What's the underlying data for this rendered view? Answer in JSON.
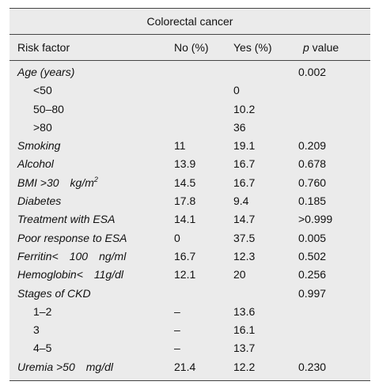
{
  "table": {
    "caption": "Colorectal cancer",
    "headers": {
      "risk": "Risk factor",
      "no": "No (%)",
      "yes": "Yes (%)",
      "p_italic": "p",
      "p_rest": " value"
    },
    "rows": [
      {
        "label": "Age (years)",
        "no": "",
        "yes": "",
        "p": "0.002"
      },
      {
        "label": "<50",
        "no": "",
        "yes": "0",
        "p": ""
      },
      {
        "label": "50–80",
        "no": "",
        "yes": "10.2",
        "p": ""
      },
      {
        "label": ">80",
        "no": "",
        "yes": "36",
        "p": ""
      },
      {
        "label": "Smoking",
        "no": "11",
        "yes": "19.1",
        "p": "0.209"
      },
      {
        "label": "Alcohol",
        "no": "13.9",
        "yes": "16.7",
        "p": "0.678"
      },
      {
        "label": "BMI >30 kg/m",
        "label_sup": "2",
        "no": "14.5",
        "yes": "16.7",
        "p": "0.760"
      },
      {
        "label": "Diabetes",
        "no": "17.8",
        "yes": "9.4",
        "p": "0.185"
      },
      {
        "label": "Treatment with ESA",
        "no": "14.1",
        "yes": "14.7",
        "p": ">0.999"
      },
      {
        "label": "Poor response to ESA",
        "no": "0",
        "yes": "37.5",
        "p": "0.005"
      },
      {
        "label": "Ferritin< 100 ng/ml",
        "no": "16.7",
        "yes": "12.3",
        "p": "0.502"
      },
      {
        "label": "Hemoglobin< 11g/dl",
        "no": "12.1",
        "yes": "20",
        "p": "0.256"
      },
      {
        "label": "Stages of CKD",
        "no": "",
        "yes": "",
        "p": "0.997"
      },
      {
        "label": "1–2",
        "no": "–",
        "yes": "13.6",
        "p": ""
      },
      {
        "label": "3",
        "no": "–",
        "yes": "16.1",
        "p": ""
      },
      {
        "label": "4–5",
        "no": "–",
        "yes": "13.7",
        "p": ""
      },
      {
        "label": "Uremia >50 mg/dl",
        "no": "21.4",
        "yes": "12.2",
        "p": "0.230"
      }
    ]
  }
}
